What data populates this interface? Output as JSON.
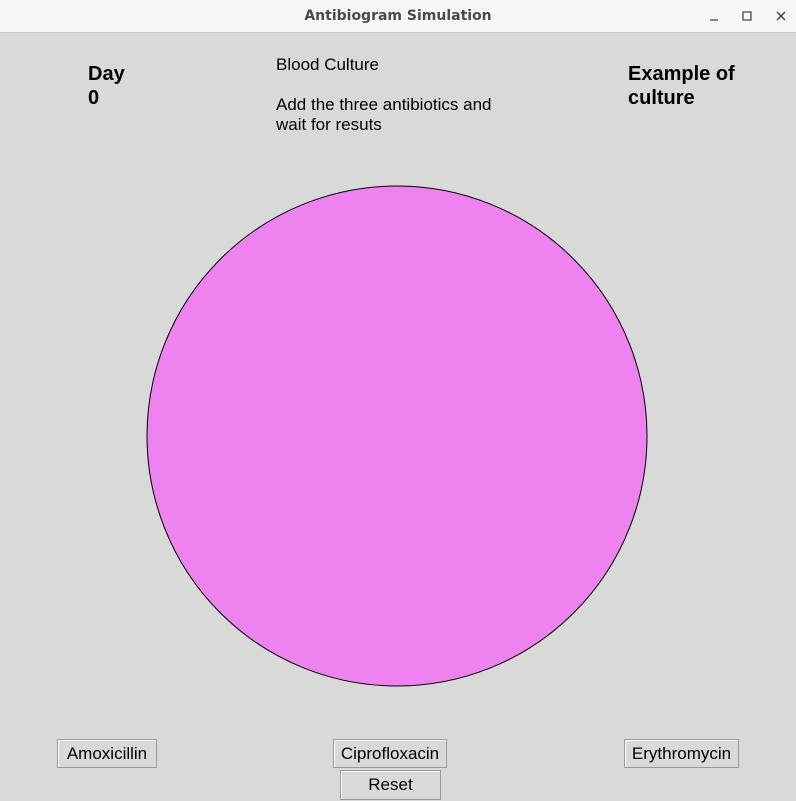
{
  "window": {
    "title": "Antibiogram Simulation"
  },
  "header": {
    "day_label": "Day",
    "day_value": "0",
    "culture_title": "Blood Culture",
    "instructions": "Add the three antibiotics and wait for resuts",
    "example_label": "Example of culture"
  },
  "dish": {
    "fill_color": "#ee82ee",
    "outline_color": "#000000"
  },
  "buttons": {
    "amoxicillin": "Amoxicillin",
    "ciprofloxacin": "Ciprofloxacin",
    "erythromycin": "Erythromycin",
    "reset": "Reset"
  },
  "icons": {
    "minimize": "minimize-icon",
    "maximize": "maximize-icon",
    "close": "close-icon"
  }
}
